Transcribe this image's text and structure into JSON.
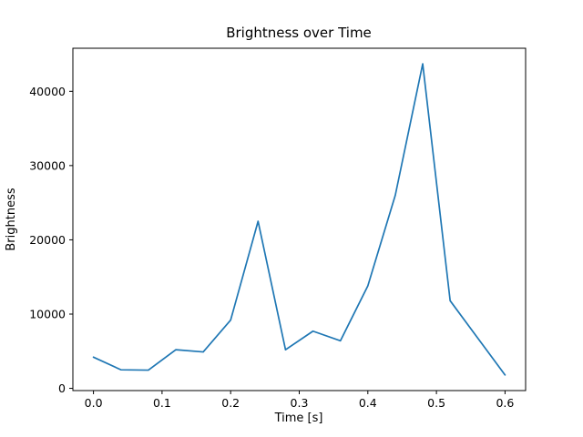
{
  "chart_data": {
    "type": "line",
    "title": "Brightness over Time",
    "xlabel": "Time [s]",
    "ylabel": "Brightness",
    "line_color": "#1f77b4",
    "frame_color": "#000000",
    "grid": false,
    "legend": null,
    "xlim": [
      -0.03,
      0.63
    ],
    "ylim": [
      -300,
      45800
    ],
    "xticks": [
      0.0,
      0.1,
      0.2,
      0.3,
      0.4,
      0.5,
      0.6
    ],
    "xtick_labels": [
      "0.0",
      "0.1",
      "0.2",
      "0.3",
      "0.4",
      "0.5",
      "0.6"
    ],
    "yticks": [
      0,
      10000,
      20000,
      30000,
      40000
    ],
    "ytick_labels": [
      "0",
      "10000",
      "20000",
      "30000",
      "40000"
    ],
    "x": [
      0.0,
      0.04,
      0.08,
      0.12,
      0.16,
      0.2,
      0.24,
      0.28,
      0.32,
      0.36,
      0.4,
      0.44,
      0.48,
      0.52,
      0.56,
      0.6
    ],
    "values": [
      4200,
      2500,
      2450,
      5200,
      4900,
      9200,
      22500,
      5200,
      7700,
      6400,
      13800,
      26000,
      43700,
      11800,
      6800,
      1800
    ]
  }
}
